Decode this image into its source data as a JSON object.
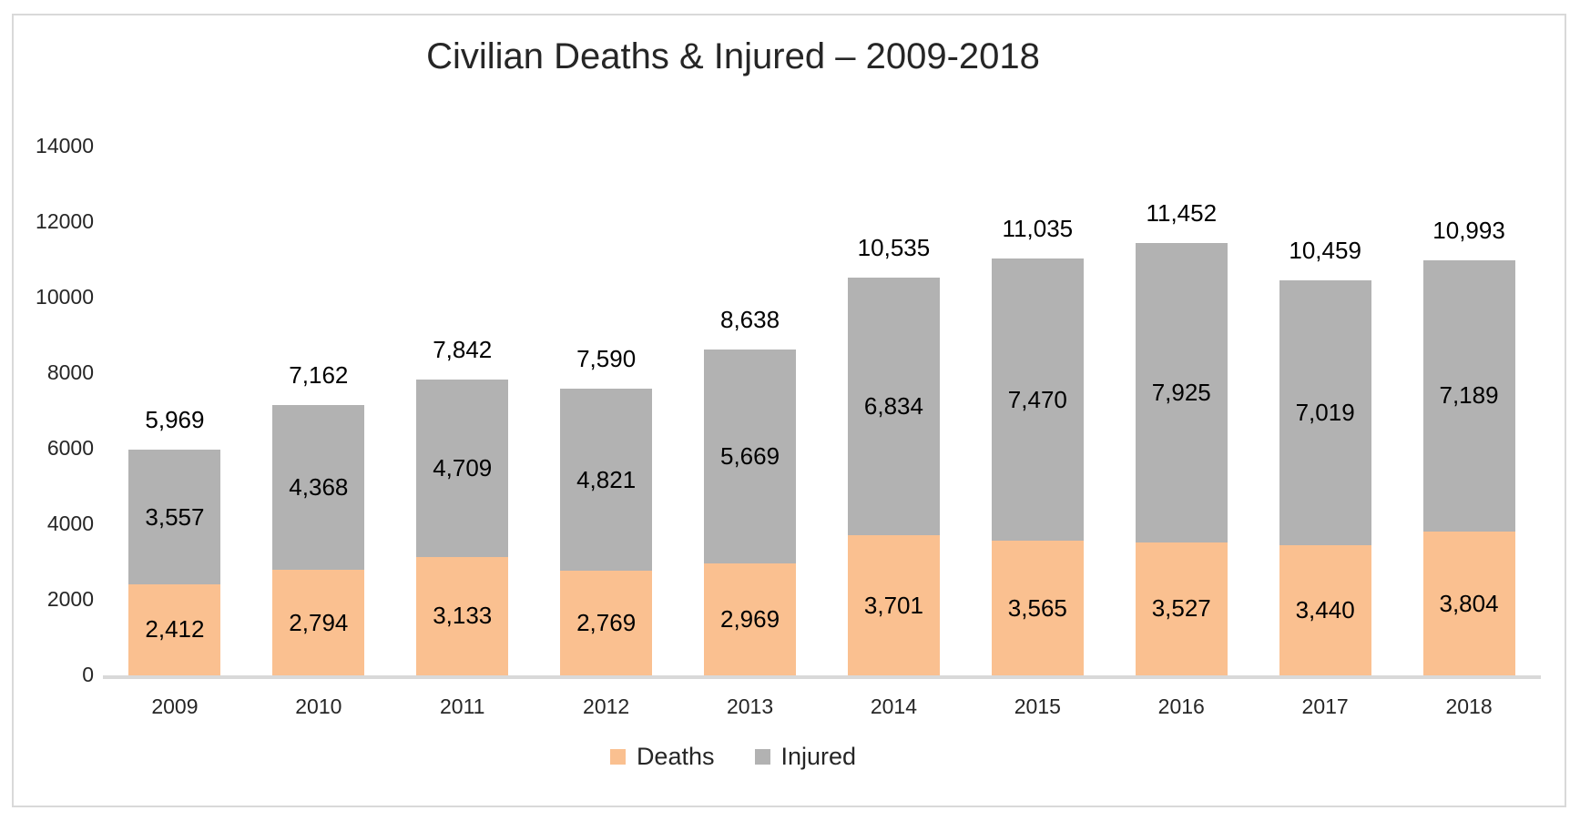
{
  "title": "Civilian Deaths & Injured – 2009-2018",
  "chart_data": {
    "type": "bar",
    "stacked": true,
    "title": "Civilian Deaths & Injured – 2009-2018",
    "categories": [
      "2009",
      "2010",
      "2011",
      "2012",
      "2013",
      "2014",
      "2015",
      "2016",
      "2017",
      "2018"
    ],
    "series": [
      {
        "name": "Deaths",
        "color": "#FAC090",
        "values": [
          2412,
          2794,
          3133,
          2769,
          2969,
          3701,
          3565,
          3527,
          3440,
          3804
        ]
      },
      {
        "name": "Injured",
        "color": "#B2B2B2",
        "values": [
          3557,
          4368,
          4709,
          4821,
          5669,
          6834,
          7470,
          7925,
          7019,
          7189
        ]
      }
    ],
    "totals": [
      5969,
      7162,
      7842,
      7590,
      8638,
      10535,
      11035,
      11452,
      10459,
      10993
    ],
    "xlabel": "",
    "ylabel": "",
    "ylim": [
      0,
      14000
    ],
    "ytick_step": 2000,
    "yticks": [
      "0",
      "2000",
      "4000",
      "6000",
      "8000",
      "10000",
      "12000",
      "14000"
    ],
    "grid": false,
    "legend_position": "bottom",
    "legend": [
      "Deaths",
      "Injured"
    ],
    "data_labels": true
  },
  "colors": {
    "deaths": "#FAC090",
    "injured": "#B2B2B2",
    "axis_line": "#D9D9D9",
    "frame_border": "#D9D9D9",
    "text": "#262626",
    "label_text": "#000000",
    "background": "#FFFFFF"
  }
}
